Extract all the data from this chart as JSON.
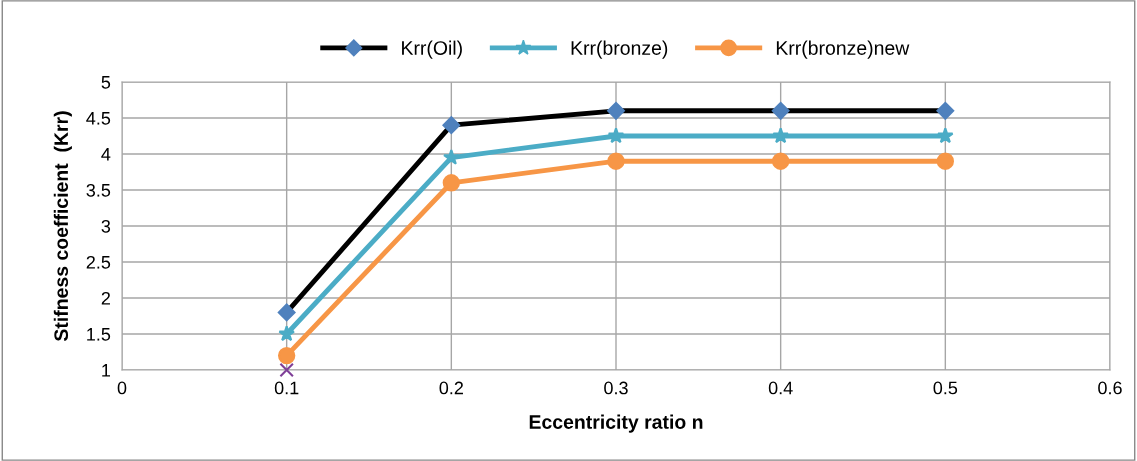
{
  "chart_data": {
    "type": "line",
    "xlabel": "Eccentricity ratio n",
    "ylabel": "Stifness coefficient  (Krr)",
    "x": [
      0.1,
      0.2,
      0.3,
      0.4,
      0.5
    ],
    "series": [
      {
        "name": "Krr(Oil)",
        "color": "#000000",
        "marker": "diamond",
        "colors": [
          "#4f81bd",
          "#4f81bd",
          "#4f81bd",
          "#4f81bd",
          "#4f81bd"
        ],
        "values": [
          1.8,
          4.4,
          4.6,
          4.6,
          4.6
        ]
      },
      {
        "name": "Krr(bronze)",
        "color": "#4bacc6",
        "marker": "star",
        "values": [
          1.5,
          3.95,
          4.25,
          4.25,
          4.25
        ]
      },
      {
        "name": "Krr(bronze)new",
        "color": "#f79646",
        "marker": "circle",
        "values": [
          1.2,
          3.6,
          3.9,
          3.9,
          3.9
        ]
      },
      {
        "type": "scatter",
        "color": "#7f3f98",
        "marker": "cross",
        "x": [
          0.1
        ],
        "values": [
          1.0
        ]
      }
    ],
    "xlim": [
      0,
      0.6
    ],
    "xticks": [
      0,
      0.1,
      0.2,
      0.3,
      0.4,
      0.5,
      0.6
    ],
    "ylim": [
      1,
      5
    ],
    "yticks": [
      1,
      1.5,
      2,
      2.5,
      3,
      3.5,
      4,
      4.5,
      5
    ],
    "grid": true,
    "legend": "top"
  }
}
